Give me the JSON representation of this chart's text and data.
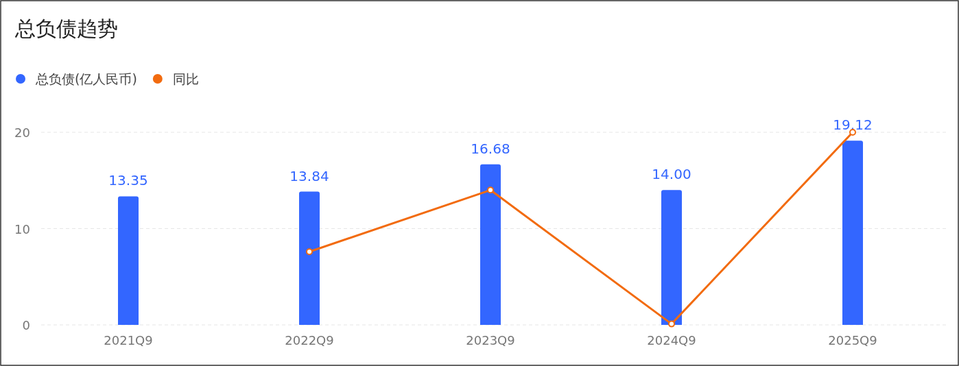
{
  "chart_data": {
    "type": "bar",
    "title": "总负债趋势",
    "categories": [
      "2021Q9",
      "2022Q9",
      "2023Q9",
      "2024Q9",
      "2025Q9"
    ],
    "series": [
      {
        "name": "总负债(亿人民币)",
        "color": "#3366ff",
        "values": [
          13.35,
          13.84,
          16.68,
          14.0,
          19.12
        ],
        "value_labels": [
          "13.35",
          "13.84",
          "16.68",
          "14.00",
          "19.12"
        ]
      },
      {
        "name": "同比",
        "type": "line",
        "color": "#f26b0f",
        "values": [
          null,
          7.6,
          14.0,
          0.1,
          20.0
        ],
        "marker": "circle"
      }
    ],
    "ylim": [
      0,
      20
    ],
    "yticks": [
      0,
      10,
      20
    ],
    "grid": "y",
    "legend": "top left"
  }
}
